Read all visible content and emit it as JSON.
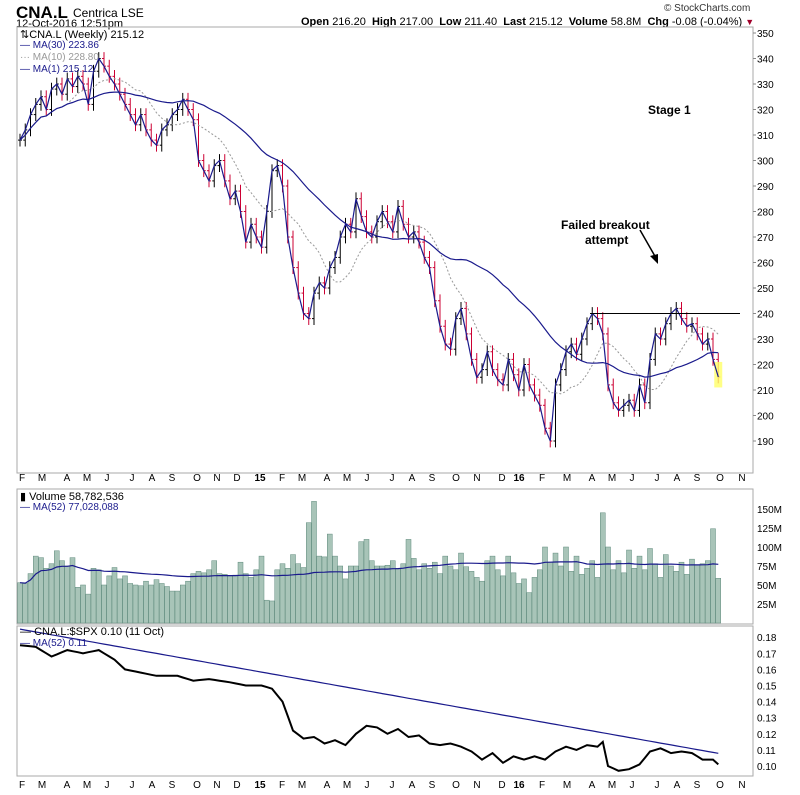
{
  "header": {
    "symbol": "CNA.L",
    "name": "Centrica",
    "exchange": "LSE",
    "datetime": "12-Oct-2016 12:51pm",
    "copyright": "© StockCharts.com",
    "open_label": "Open",
    "open": "216.20",
    "high_label": "High",
    "high": "217.00",
    "low_label": "Low",
    "low": "211.40",
    "last_label": "Last",
    "last": "215.12",
    "volume_label": "Volume",
    "volume": "58.8M",
    "chg_label": "Chg",
    "chg": "-0.08 (-0.04%)",
    "down_color": "#a0002a"
  },
  "legend": {
    "price": "CNA.L (Weekly) 215.12",
    "ma30": "MA(30) 223.86",
    "ma10": "MA(10) 228.80",
    "ma1": "MA(1) 215.12",
    "volume": "Volume 58,782,536",
    "vol_ma": "MA(52) 77,028,088",
    "ratio": "CNA.L:$SPX 0.10 (11 Oct)",
    "ratio_ma": "MA(52) 0.11"
  },
  "annotations": {
    "stage": "Stage 1",
    "failed1": "Failed breakout",
    "failed2": "attempt",
    "resistance_level": 240
  },
  "colors": {
    "ma": "#1a1a8c",
    "up": "#000000",
    "down": "#cc0033",
    "volume": "#a8c4b8",
    "volume_edge": "#5f8a7c",
    "highlight": "#ffff66"
  },
  "chart_data": [
    {
      "type": "line",
      "title": "CNA.L (Weekly)",
      "ylim": [
        182,
        352
      ],
      "yticks": [
        190,
        200,
        210,
        220,
        230,
        240,
        250,
        260,
        270,
        280,
        290,
        300,
        310,
        320,
        330,
        340,
        350
      ],
      "xticks": [
        "F",
        "M",
        "A",
        "M",
        "J",
        "J",
        "A",
        "S",
        "O",
        "N",
        "D",
        "15",
        "F",
        "M",
        "A",
        "M",
        "J",
        "J",
        "A",
        "S",
        "O",
        "N",
        "D",
        "16",
        "F",
        "M",
        "A",
        "M",
        "J",
        "J",
        "A",
        "S",
        "O",
        "N"
      ],
      "close": [
        308,
        312,
        318,
        322,
        325,
        320,
        328,
        330,
        326,
        332,
        329,
        333,
        330,
        322,
        335,
        340,
        337,
        333,
        330,
        326,
        322,
        318,
        314,
        318,
        312,
        308,
        306,
        312,
        314,
        318,
        320,
        324,
        320,
        316,
        300,
        296,
        292,
        298,
        300,
        292,
        285,
        288,
        280,
        268,
        275,
        270,
        266,
        280,
        296,
        298,
        290,
        270,
        258,
        248,
        240,
        238,
        248,
        252,
        250,
        258,
        262,
        270,
        275,
        272,
        285,
        278,
        272,
        270,
        276,
        280,
        276,
        272,
        282,
        275,
        270,
        272,
        268,
        262,
        258,
        245,
        235,
        228,
        226,
        238,
        242,
        232,
        222,
        215,
        218,
        225,
        218,
        214,
        212,
        222,
        216,
        210,
        220,
        212,
        208,
        204,
        195,
        190,
        212,
        218,
        225,
        228,
        224,
        230,
        236,
        240,
        238,
        232,
        212,
        205,
        202,
        204,
        206,
        202,
        212,
        205,
        222,
        232,
        230,
        236,
        240,
        242,
        238,
        235,
        236,
        232,
        228,
        230,
        222,
        215.12
      ]
    },
    {
      "type": "bar",
      "title": "Volume",
      "ylabel": "Volume (M)",
      "ylim": [
        0,
        160
      ],
      "yticks": [
        "25M",
        "50M",
        "75M",
        "100M",
        "125M",
        "150M"
      ],
      "values": [
        53,
        52,
        65,
        88,
        86,
        72,
        78,
        95,
        82,
        75,
        86,
        47,
        50,
        38,
        72,
        70,
        50,
        62,
        73,
        58,
        62,
        52,
        50,
        49,
        55,
        50,
        57,
        52,
        48,
        42,
        42,
        50,
        55,
        65,
        68,
        66,
        70,
        82,
        65,
        64,
        62,
        63,
        80,
        65,
        60,
        70,
        88,
        30,
        29,
        70,
        78,
        72,
        90,
        78,
        73,
        132,
        160,
        88,
        87,
        117,
        88,
        75,
        58,
        75,
        75,
        107,
        110,
        82,
        75,
        75,
        76,
        82,
        72,
        78,
        110,
        85,
        70,
        78,
        72,
        80,
        65,
        88,
        75,
        70,
        92,
        74,
        68,
        60,
        55,
        82,
        88,
        70,
        62,
        88,
        66,
        52,
        58,
        40,
        60,
        70,
        100,
        80,
        92,
        75,
        100,
        68,
        88,
        64,
        72,
        82,
        60,
        145,
        100,
        70,
        82,
        66,
        96,
        72,
        88,
        70,
        98,
        78,
        60,
        90,
        75,
        68,
        80,
        64,
        84,
        76,
        78,
        82,
        124,
        58.8
      ]
    },
    {
      "type": "line",
      "title": "CNA.L:$SPX",
      "ylim": [
        0.095,
        0.183
      ],
      "yticks": [
        "0.10",
        "0.11",
        "0.12",
        "0.13",
        "0.14",
        "0.15",
        "0.16",
        "0.17",
        "0.18"
      ],
      "points": [
        [
          0,
          0.175
        ],
        [
          3,
          0.174
        ],
        [
          6,
          0.168
        ],
        [
          9,
          0.172
        ],
        [
          12,
          0.17
        ],
        [
          15,
          0.172
        ],
        [
          18,
          0.166
        ],
        [
          20,
          0.16
        ],
        [
          23,
          0.158
        ],
        [
          26,
          0.156
        ],
        [
          30,
          0.156
        ],
        [
          33,
          0.153
        ],
        [
          36,
          0.154
        ],
        [
          40,
          0.152
        ],
        [
          43,
          0.15
        ],
        [
          46,
          0.15
        ],
        [
          48,
          0.148
        ],
        [
          50,
          0.14
        ],
        [
          52,
          0.122
        ],
        [
          54,
          0.117
        ],
        [
          56,
          0.118
        ],
        [
          58,
          0.114
        ],
        [
          60,
          0.116
        ],
        [
          62,
          0.113
        ],
        [
          64,
          0.12
        ],
        [
          66,
          0.125
        ],
        [
          68,
          0.124
        ],
        [
          70,
          0.12
        ],
        [
          72,
          0.123
        ],
        [
          74,
          0.118
        ],
        [
          76,
          0.119
        ],
        [
          78,
          0.114
        ],
        [
          80,
          0.113
        ],
        [
          82,
          0.114
        ],
        [
          84,
          0.112
        ],
        [
          86,
          0.109
        ],
        [
          88,
          0.104
        ],
        [
          90,
          0.108
        ],
        [
          92,
          0.102
        ],
        [
          94,
          0.106
        ],
        [
          96,
          0.104
        ],
        [
          98,
          0.106
        ],
        [
          100,
          0.104
        ],
        [
          102,
          0.109
        ],
        [
          104,
          0.112
        ],
        [
          106,
          0.11
        ],
        [
          108,
          0.113
        ],
        [
          110,
          0.112
        ],
        [
          111,
          0.115
        ],
        [
          112,
          0.1
        ],
        [
          114,
          0.097
        ],
        [
          116,
          0.098
        ],
        [
          118,
          0.101
        ],
        [
          120,
          0.109
        ],
        [
          122,
          0.111
        ],
        [
          124,
          0.108
        ],
        [
          126,
          0.109
        ],
        [
          128,
          0.108
        ],
        [
          130,
          0.104
        ],
        [
          132,
          0.104
        ],
        [
          133,
          0.101
        ]
      ]
    }
  ]
}
